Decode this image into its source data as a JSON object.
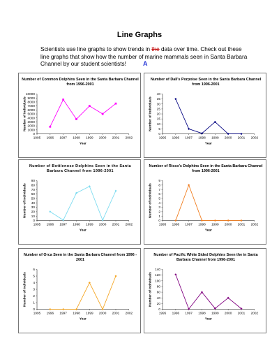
{
  "page": {
    "title": "Line Graphs",
    "intro_before": "Scientists use line graphs to show trends in ",
    "intro_strike": "the",
    "intro_after": " data over time. Check out these line graphs that show how the number of marine mammals seen in Santa Barbara Channel by our student scientists",
    "intro_end": "!",
    "cursor_mark": "A"
  },
  "chart_data": [
    {
      "type": "line",
      "title": "Number of Common Dolphins Seen in the Santa Barbara Channel from 1996-2001",
      "xlabel": "Year",
      "ylabel": "Number of Individuals",
      "color": "#ff00ff",
      "marker": "square",
      "xlim": [
        1995,
        2002
      ],
      "xticks": [
        "1995",
        "1996",
        "1997",
        "1998",
        "1999",
        "2000",
        "2001",
        "2002"
      ],
      "ylim": [
        0,
        10000
      ],
      "yticks": [
        "0",
        "1000",
        "2000",
        "3000",
        "4000",
        "5000",
        "6000",
        "7000",
        "8000",
        "9000",
        "10000"
      ],
      "x": [
        1996,
        1997,
        1998,
        1999,
        2000,
        2001
      ],
      "y": [
        1800,
        8600,
        3700,
        7000,
        5000,
        7600
      ]
    },
    {
      "type": "line",
      "title": "Number of Dall's Porpoise Seen in the Santa Barbara Channel from 1996-2001",
      "xlabel": "Year",
      "ylabel": "Number of Individuals",
      "color": "#000080",
      "marker": "diamond",
      "xlim": [
        1995,
        2002
      ],
      "xticks": [
        "1995",
        "1996",
        "1997",
        "1998",
        "1999",
        "2000",
        "2001",
        "2002"
      ],
      "ylim": [
        0,
        40
      ],
      "yticks": [
        "0",
        "5",
        "10",
        "15",
        "20",
        "25",
        "30",
        "35",
        "40"
      ],
      "x": [
        1996,
        1997,
        1998,
        1999,
        2000,
        2001
      ],
      "y": [
        35,
        5,
        0.5,
        12,
        0,
        0
      ]
    },
    {
      "type": "line",
      "title": "Number of Bottlenose Dolphins Seen in the Santa Barbara Channel from 1996-2001",
      "xlabel": "Year",
      "ylabel": "Number of Individuals",
      "color": "#7fdcf0",
      "marker": "diamond",
      "spaced_title": true,
      "xlim": [
        1995,
        2002
      ],
      "xticks": [
        "1995",
        "1996",
        "1997",
        "1998",
        "1999",
        "2000",
        "2001",
        "2002"
      ],
      "ylim": [
        0,
        90
      ],
      "yticks": [
        "0",
        "10",
        "20",
        "30",
        "40",
        "50",
        "60",
        "70",
        "80",
        "90"
      ],
      "x": [
        1996,
        1997,
        1998,
        1999,
        2000,
        2001
      ],
      "y": [
        20,
        1,
        62,
        77,
        1,
        67
      ]
    },
    {
      "type": "line",
      "title": "Number of Risso's Dolphins Seen in the Santa Barbara Channel from 1996-2001",
      "xlabel": "Year",
      "ylabel": "Number of Individuals",
      "color": "#f07b1b",
      "marker": "diamond",
      "xlim": [
        1995,
        2002
      ],
      "xticks": [
        "1995",
        "1996",
        "1997",
        "1998",
        "1999",
        "2000",
        "2001",
        "2002"
      ],
      "ylim": [
        0,
        9
      ],
      "yticks": [
        "0",
        "1",
        "2",
        "3",
        "4",
        "5",
        "6",
        "7",
        "8",
        "9"
      ],
      "x": [
        1996,
        1997,
        1998,
        1999,
        2000,
        2001
      ],
      "y": [
        0,
        8,
        0,
        0,
        0,
        0
      ]
    },
    {
      "type": "line",
      "title": "Number of Orca Seen in the Santa Barbara Channel from 1996 - 2001",
      "xlabel": "Year",
      "ylabel": "Number of Individuals",
      "color": "#f5a623",
      "marker": "diamond",
      "xlim": [
        1995,
        2002
      ],
      "xticks": [
        "1995",
        "1996",
        "1997",
        "1998",
        "1999",
        "2000",
        "2001",
        "2002"
      ],
      "ylim": [
        0,
        6
      ],
      "yticks": [
        "0",
        "1",
        "2",
        "3",
        "4",
        "5",
        "6"
      ],
      "x": [
        1996,
        1997,
        1998,
        1999,
        2000,
        2001
      ],
      "y": [
        0,
        0,
        0,
        4,
        0,
        5
      ]
    },
    {
      "type": "line",
      "title": "Number of Pacific White Sided Dolphins Seen the in Santa Barbara Channel from 1996-2001",
      "xlabel": "Year",
      "ylabel": "Number of Individuals",
      "color": "#800080",
      "marker": "diamond",
      "xlim": [
        1995,
        2002
      ],
      "xticks": [
        "1995",
        "1996",
        "1997",
        "1998",
        "1999",
        "2000",
        "2001",
        "2002"
      ],
      "ylim": [
        0,
        140
      ],
      "yticks": [
        "0",
        "20",
        "40",
        "60",
        "80",
        "100",
        "120",
        "140"
      ],
      "x": [
        1996,
        1997,
        1998,
        1999,
        2000,
        2001
      ],
      "y": [
        122,
        1,
        60,
        3,
        40,
        2
      ]
    }
  ]
}
